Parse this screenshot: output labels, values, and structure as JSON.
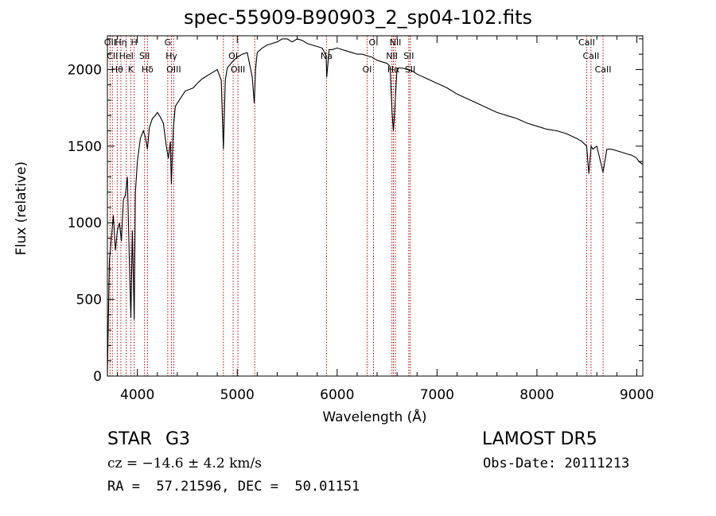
{
  "chart_data": {
    "type": "line",
    "title": "spec-55909-B90903_2_sp04-102.fits",
    "xlabel": "Wavelength (Å)",
    "ylabel": "Flux (relative)",
    "xlim": [
      3700,
      9060
    ],
    "ylim": [
      0,
      2220
    ],
    "xticks": [
      4000,
      5000,
      6000,
      7000,
      8000,
      9000
    ],
    "yticks": [
      0,
      500,
      1000,
      1500,
      2000
    ],
    "grid": false,
    "series": [
      {
        "color": "#000000",
        "x": [
          3700,
          3710,
          3720,
          3740,
          3760,
          3780,
          3800,
          3820,
          3840,
          3860,
          3880,
          3900,
          3920,
          3935,
          3950,
          3968,
          3980,
          4000,
          4030,
          4060,
          4080,
          4101,
          4120,
          4150,
          4180,
          4200,
          4230,
          4260,
          4290,
          4310,
          4330,
          4340,
          4360,
          4380,
          4400,
          4440,
          4480,
          4520,
          4560,
          4600,
          4650,
          4700,
          4750,
          4800,
          4840,
          4861,
          4880,
          4900,
          4950,
          5000,
          5050,
          5100,
          5150,
          5170,
          5183,
          5200,
          5250,
          5300,
          5350,
          5400,
          5450,
          5500,
          5550,
          5600,
          5650,
          5700,
          5750,
          5800,
          5850,
          5890,
          5896,
          5920,
          5950,
          6000,
          6050,
          6100,
          6150,
          6200,
          6250,
          6300,
          6350,
          6400,
          6450,
          6500,
          6530,
          6550,
          6563,
          6575,
          6600,
          6650,
          6700,
          6750,
          6800,
          6900,
          7000,
          7100,
          7200,
          7300,
          7400,
          7500,
          7600,
          7700,
          7800,
          7900,
          8000,
          8100,
          8200,
          8300,
          8400,
          8450,
          8498,
          8520,
          8542,
          8560,
          8600,
          8662,
          8700,
          8750,
          8800,
          8850,
          8900,
          8950,
          8980,
          9000,
          9020,
          9040,
          9060
        ],
        "values": [
          0,
          400,
          750,
          900,
          1050,
          820,
          950,
          1000,
          880,
          1150,
          1180,
          1300,
          750,
          380,
          950,
          370,
          1200,
          1400,
          1550,
          1600,
          1560,
          1480,
          1620,
          1680,
          1700,
          1720,
          1690,
          1650,
          1500,
          1420,
          1530,
          1250,
          1620,
          1760,
          1780,
          1820,
          1860,
          1870,
          1880,
          1910,
          1940,
          1960,
          1980,
          2000,
          1930,
          1480,
          1930,
          2010,
          2050,
          2080,
          2100,
          2110,
          1950,
          1780,
          2000,
          2110,
          2140,
          2160,
          2170,
          2180,
          2200,
          2200,
          2180,
          2200,
          2190,
          2170,
          2160,
          2150,
          2140,
          2090,
          1950,
          2130,
          2130,
          2140,
          2130,
          2120,
          2110,
          2100,
          2100,
          2090,
          2080,
          2060,
          2050,
          2040,
          2020,
          1720,
          1600,
          1720,
          2010,
          2010,
          2000,
          1990,
          1970,
          1940,
          1910,
          1880,
          1840,
          1810,
          1780,
          1750,
          1720,
          1700,
          1680,
          1650,
          1630,
          1610,
          1600,
          1580,
          1550,
          1530,
          1500,
          1320,
          1500,
          1480,
          1500,
          1330,
          1480,
          1480,
          1470,
          1460,
          1450,
          1440,
          1430,
          1420,
          1400,
          1390,
          1380
        ]
      }
    ],
    "lines": [
      {
        "x": 3727,
        "label": "OII"
      },
      {
        "x": 3750,
        "label": "CII"
      },
      {
        "x": 3798,
        "label": "Hθ"
      },
      {
        "x": 3835,
        "label": "Hη"
      },
      {
        "x": 3889,
        "label": "HeI"
      },
      {
        "x": 3934,
        "label": "K"
      },
      {
        "x": 3968,
        "label": "H"
      },
      {
        "x": 4072,
        "label": "SII"
      },
      {
        "x": 4101,
        "label": "Hδ"
      },
      {
        "x": 4304,
        "label": "G"
      },
      {
        "x": 4341,
        "label": "Hγ"
      },
      {
        "x": 4364,
        "label": "OIII"
      },
      {
        "x": 4861,
        "label": ""
      },
      {
        "x": 4959,
        "label": "OI"
      },
      {
        "x": 5007,
        "label": "OIII"
      },
      {
        "x": 5175,
        "label": ""
      },
      {
        "x": 5893,
        "label": "Na"
      },
      {
        "x": 6300,
        "label": "OI"
      },
      {
        "x": 6364,
        "label": "OI"
      },
      {
        "x": 6548,
        "label": "NII"
      },
      {
        "x": 6563,
        "label": "Hα"
      },
      {
        "x": 6583,
        "label": "NII"
      },
      {
        "x": 6717,
        "label": "SII"
      },
      {
        "x": 6731,
        "label": "SII"
      },
      {
        "x": 8498,
        "label": "CaII"
      },
      {
        "x": 8542,
        "label": "CaII"
      },
      {
        "x": 8662,
        "label": "CaII"
      }
    ]
  },
  "info": {
    "object_class": "STAR",
    "subclass": "G3",
    "survey": "LAMOST DR5",
    "redshift": "cz = −14.6 ± 4.2 km/s",
    "obs_date": "Obs-Date: 20111213",
    "coords": "RA =  57.21596, DEC =  50.01151"
  }
}
